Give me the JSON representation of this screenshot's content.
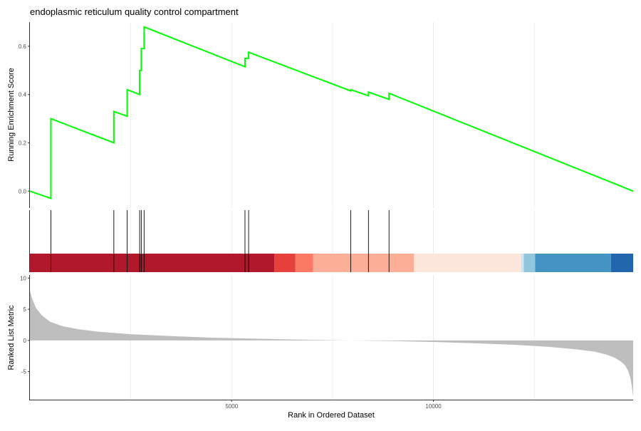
{
  "chart_data": {
    "type": "line",
    "title": "endoplasmic reticulum quality control compartment",
    "xlabel": "Rank in Ordered Dataset",
    "ylabel_top": "Running Enrichment Score",
    "ylabel_bottom": "Ranked List Metric",
    "xlim": [
      0,
      14950
    ],
    "x_ticks": [
      5000,
      10000
    ],
    "x_tick_labels": [
      "5000",
      "10000"
    ],
    "es_ylim": [
      -0.07,
      0.7
    ],
    "es_y_ticks": [
      0.0,
      0.2,
      0.4,
      0.6
    ],
    "es_y_tick_labels": [
      "0.0",
      "0.2",
      "0.4",
      "0.6"
    ],
    "metric_ylim": [
      -9.5,
      10.5
    ],
    "metric_y_ticks": [
      10,
      5,
      0,
      -5
    ],
    "metric_y_tick_labels": [
      "10",
      "5",
      "0",
      "-5"
    ],
    "series": [
      {
        "values_x": [
          0,
          520,
          520,
          2080,
          2080,
          2410,
          2410,
          2720,
          2720,
          2760,
          2760,
          2830,
          2830,
          5330,
          5330,
          5420,
          5420,
          7950,
          7950,
          8390,
          8390,
          8900,
          8900,
          14950
        ],
        "values_y": [
          0.0,
          -0.03,
          0.3,
          0.2,
          0.33,
          0.31,
          0.42,
          0.4,
          0.5,
          0.5,
          0.59,
          0.59,
          0.68,
          0.515,
          0.55,
          0.55,
          0.575,
          0.415,
          0.42,
          0.395,
          0.41,
          0.38,
          0.405,
          0.0
        ],
        "color": "#00ff00"
      }
    ],
    "hit_positions": [
      520,
      2080,
      2410,
      2720,
      2760,
      2830,
      5330,
      5420,
      7950,
      8390,
      8900
    ],
    "rank_bands": [
      {
        "start": 0,
        "end": 6060,
        "color": "#b2182b"
      },
      {
        "start": 6060,
        "end": 6580,
        "color": "#e6403b"
      },
      {
        "start": 6580,
        "end": 7020,
        "color": "#fb7a63"
      },
      {
        "start": 7020,
        "end": 9520,
        "color": "#fcae96"
      },
      {
        "start": 9520,
        "end": 12170,
        "color": "#fde6dc"
      },
      {
        "start": 12170,
        "end": 12240,
        "color": "#d1e5f0"
      },
      {
        "start": 12240,
        "end": 12520,
        "color": "#92c5de"
      },
      {
        "start": 12520,
        "end": 14400,
        "color": "#4393c3"
      },
      {
        "start": 14400,
        "end": 14950,
        "color": "#2166ac"
      }
    ],
    "metric_curve": {
      "x": [
        0,
        50,
        150,
        300,
        500,
        800,
        1200,
        1700,
        2500,
        3500,
        4500,
        5500,
        6500,
        7500,
        8400,
        9000,
        10000,
        11000,
        12000,
        12800,
        13500,
        14000,
        14300,
        14500,
        14650,
        14750,
        14820,
        14880,
        14920,
        14950
      ],
      "y": [
        8.0,
        6.8,
        5.2,
        4.0,
        3.0,
        2.3,
        1.8,
        1.4,
        1.0,
        0.7,
        0.45,
        0.3,
        0.15,
        0.05,
        -0.05,
        -0.1,
        -0.25,
        -0.45,
        -0.7,
        -1.0,
        -1.4,
        -1.8,
        -2.3,
        -2.8,
        -3.4,
        -4.0,
        -4.8,
        -6.0,
        -7.5,
        -9.0
      ],
      "fill": "#bebebe"
    },
    "grid": true
  }
}
